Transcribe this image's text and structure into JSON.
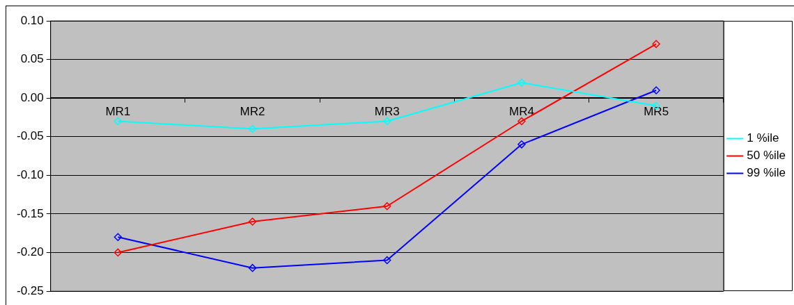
{
  "chart_data": {
    "type": "line",
    "categories": [
      "MR1",
      "MR2",
      "MR3",
      "MR4",
      "MR5"
    ],
    "series": [
      {
        "name": "1 %ile",
        "color": "#00ffff",
        "values": [
          -0.03,
          -0.04,
          -0.03,
          0.02,
          -0.01
        ]
      },
      {
        "name": "50 %ile",
        "color": "#ff0000",
        "values": [
          -0.2,
          -0.16,
          -0.14,
          -0.03,
          0.07
        ]
      },
      {
        "name": "99 %ile",
        "color": "#0000ff",
        "values": [
          -0.18,
          -0.22,
          -0.21,
          -0.06,
          0.01
        ]
      }
    ],
    "ylim": [
      -0.25,
      0.1
    ],
    "yticks": [
      {
        "value": -0.25,
        "label": "-0.25"
      },
      {
        "value": -0.2,
        "label": "-0.20"
      },
      {
        "value": -0.15,
        "label": "-0.15"
      },
      {
        "value": -0.1,
        "label": "-0.10"
      },
      {
        "value": -0.05,
        "label": "-0.05"
      },
      {
        "value": 0,
        "label": "0.00"
      },
      {
        "value": 0.05,
        "label": "0.05"
      },
      {
        "value": 0.1,
        "label": "0.10"
      }
    ],
    "grid": "y",
    "legend": "right",
    "marker": "diamond",
    "line_style": "solid"
  }
}
